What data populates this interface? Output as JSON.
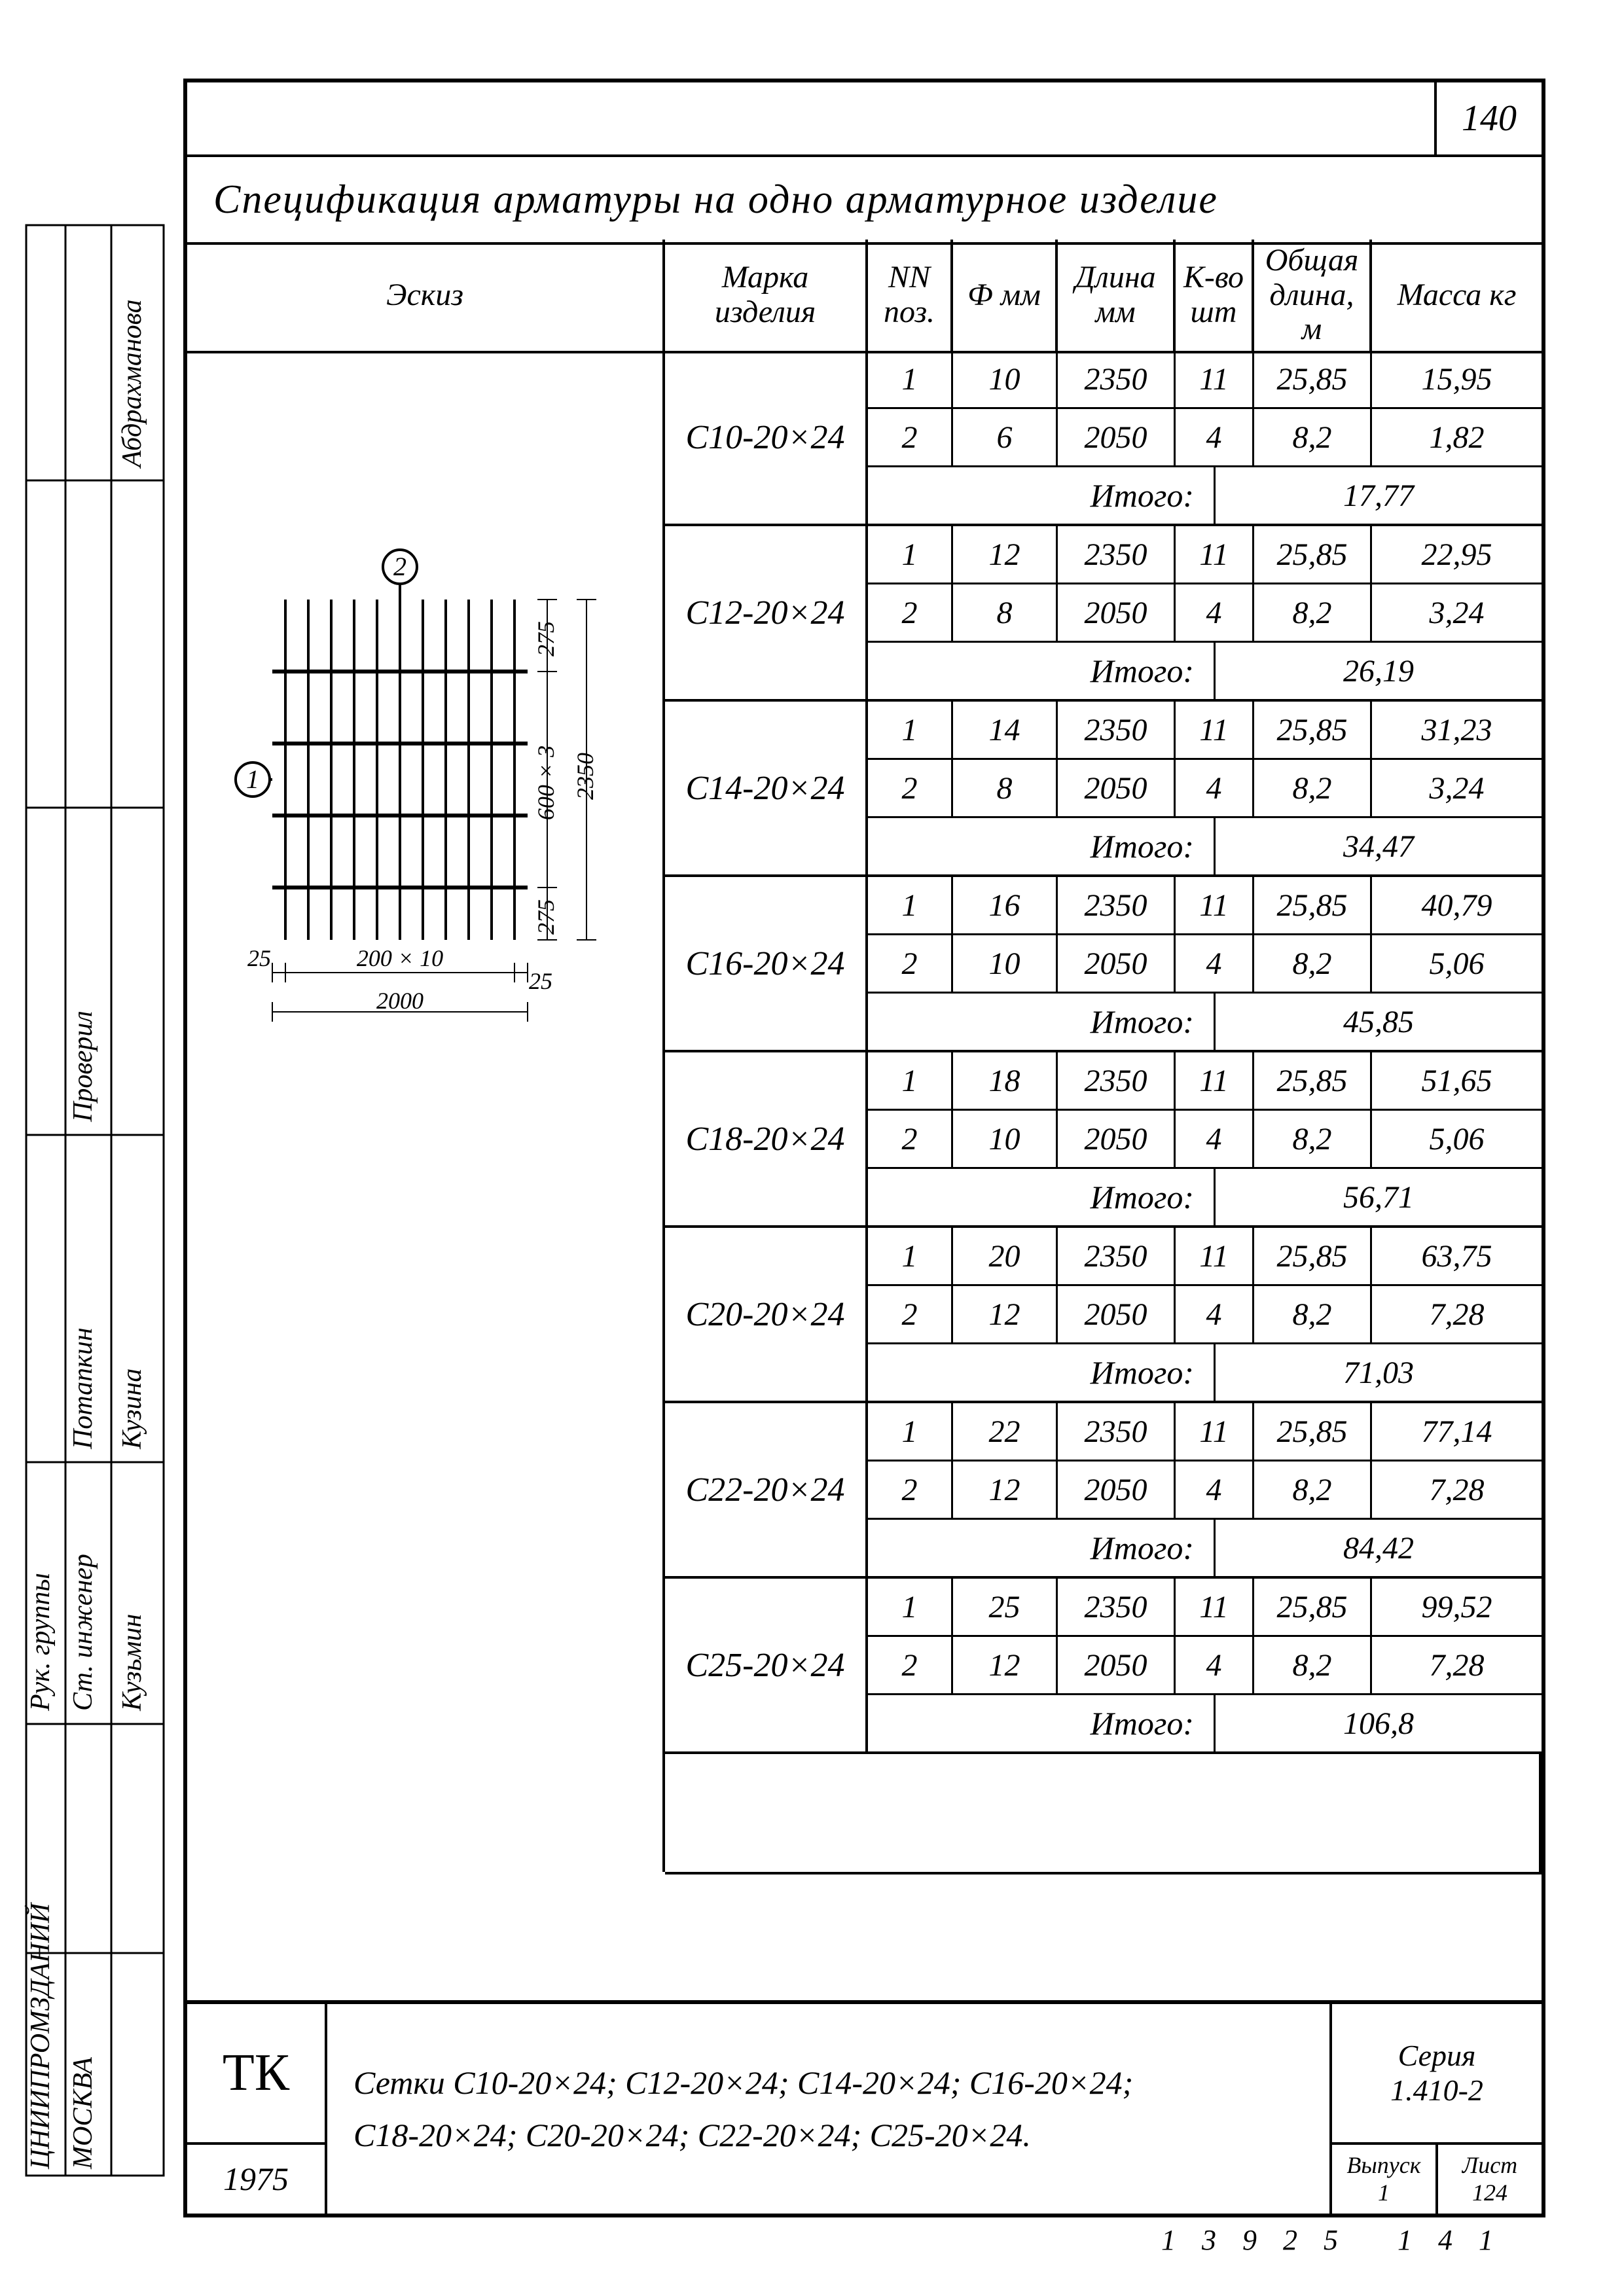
{
  "page_number_top": "140",
  "title": "Спецификация  арматуры на одно арматурное  изделие",
  "headers": {
    "sketch": "Эскиз",
    "mark": "Марка изделия",
    "pos": "NN поз.",
    "dia": "Ф мм",
    "len": "Длина мм",
    "qty": "К-во шт",
    "totlen": "Общая длина, м",
    "mass": "Масса кг"
  },
  "total_label": "Итого:",
  "groups": [
    {
      "mark": "С10-20×24",
      "rows": [
        {
          "pos": "1",
          "dia": "10",
          "len": "2350",
          "qty": "11",
          "tot": "25,85",
          "mass": "15,95"
        },
        {
          "pos": "2",
          "dia": "6",
          "len": "2050",
          "qty": "4",
          "tot": "8,2",
          "mass": "1,82"
        }
      ],
      "total": "17,77"
    },
    {
      "mark": "С12-20×24",
      "rows": [
        {
          "pos": "1",
          "dia": "12",
          "len": "2350",
          "qty": "11",
          "tot": "25,85",
          "mass": "22,95"
        },
        {
          "pos": "2",
          "dia": "8",
          "len": "2050",
          "qty": "4",
          "tot": "8,2",
          "mass": "3,24"
        }
      ],
      "total": "26,19"
    },
    {
      "mark": "С14-20×24",
      "rows": [
        {
          "pos": "1",
          "dia": "14",
          "len": "2350",
          "qty": "11",
          "tot": "25,85",
          "mass": "31,23"
        },
        {
          "pos": "2",
          "dia": "8",
          "len": "2050",
          "qty": "4",
          "tot": "8,2",
          "mass": "3,24"
        }
      ],
      "total": "34,47"
    },
    {
      "mark": "С16-20×24",
      "rows": [
        {
          "pos": "1",
          "dia": "16",
          "len": "2350",
          "qty": "11",
          "tot": "25,85",
          "mass": "40,79"
        },
        {
          "pos": "2",
          "dia": "10",
          "len": "2050",
          "qty": "4",
          "tot": "8,2",
          "mass": "5,06"
        }
      ],
      "total": "45,85"
    },
    {
      "mark": "С18-20×24",
      "rows": [
        {
          "pos": "1",
          "dia": "18",
          "len": "2350",
          "qty": "11",
          "tot": "25,85",
          "mass": "51,65"
        },
        {
          "pos": "2",
          "dia": "10",
          "len": "2050",
          "qty": "4",
          "tot": "8,2",
          "mass": "5,06"
        }
      ],
      "total": "56,71"
    },
    {
      "mark": "С20-20×24",
      "rows": [
        {
          "pos": "1",
          "dia": "20",
          "len": "2350",
          "qty": "11",
          "tot": "25,85",
          "mass": "63,75"
        },
        {
          "pos": "2",
          "dia": "12",
          "len": "2050",
          "qty": "4",
          "tot": "8,2",
          "mass": "7,28"
        }
      ],
      "total": "71,03"
    },
    {
      "mark": "С22-20×24",
      "rows": [
        {
          "pos": "1",
          "dia": "22",
          "len": "2350",
          "qty": "11",
          "tot": "25,85",
          "mass": "77,14"
        },
        {
          "pos": "2",
          "dia": "12",
          "len": "2050",
          "qty": "4",
          "tot": "8,2",
          "mass": "7,28"
        }
      ],
      "total": "84,42"
    },
    {
      "mark": "С25-20×24",
      "rows": [
        {
          "pos": "1",
          "dia": "25",
          "len": "2350",
          "qty": "11",
          "tot": "25,85",
          "mass": "99,52"
        },
        {
          "pos": "2",
          "dia": "12",
          "len": "2050",
          "qty": "4",
          "tot": "8,2",
          "mass": "7,28"
        }
      ],
      "total": "106,8"
    }
  ],
  "sketch": {
    "callout1": "1",
    "callout2": "2",
    "dim_275_top": "275",
    "dim_275_bot": "275",
    "dim_600x3": "600 × 3",
    "dim_2350": "2350",
    "dim_25l": "25",
    "dim_25r": "25",
    "dim_200x10": "200 × 10",
    "dim_2000": "2000"
  },
  "footer": {
    "tk": "ТК",
    "year": "1975",
    "desc_line1": "Сетки  С10-20×24; С12-20×24; С14-20×24; С16-20×24;",
    "desc_line2": "С18-20×24; С20-20×24; С22-20×24; С25-20×24.",
    "series_label": "Серия",
    "series_num": "1.410-2",
    "issue_label": "Выпуск",
    "issue_num": "1",
    "sheet_label": "Лист",
    "sheet_num": "124",
    "bottom_numbers": "13925   141"
  },
  "left_text": {
    "org": "ЦНИИПРОМЗДАНИЙ",
    "city": "МОСКВА",
    "roles": [
      "Рук. группы",
      "Ст. инженер"
    ],
    "check": "Проверил",
    "names": [
      "Потапкин",
      "Кузина",
      "Кузьмин",
      "Абдрахманова"
    ]
  },
  "style": {
    "line_color": "#000000",
    "bg_color": "#ffffff",
    "font_main": "cursive italic",
    "font_size_title": 62,
    "font_size_header": 48,
    "font_size_cell": 48,
    "border_heavy": 6,
    "border_normal": 4,
    "border_light": 3
  }
}
